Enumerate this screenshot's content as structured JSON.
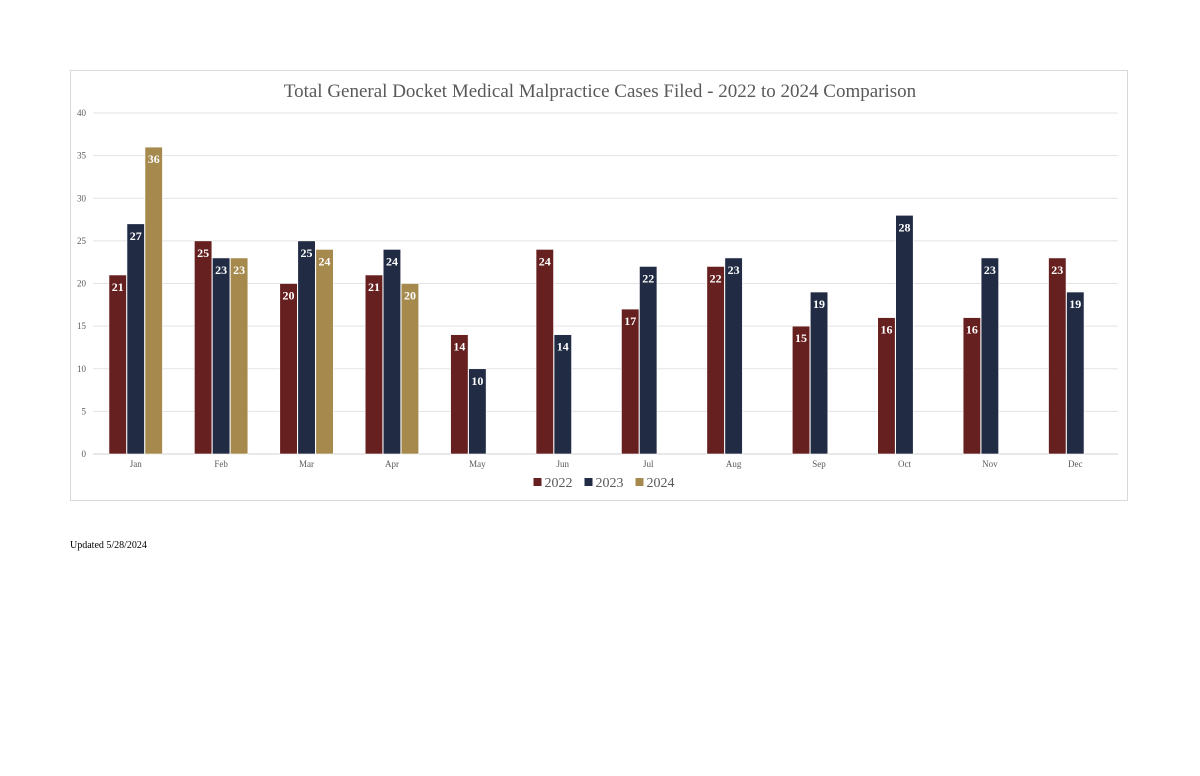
{
  "footnote": "Updated 5/28/2024",
  "colors": {
    "2022": "#66201f",
    "2023": "#212b44",
    "2024": "#a5894d"
  },
  "chart_data": {
    "type": "bar",
    "title": "Total General Docket Medical Malpractice Cases Filed - 2022 to 2024 Comparison",
    "xlabel": "",
    "ylabel": "",
    "ylim": [
      0,
      40
    ],
    "yticks": [
      0,
      5,
      10,
      15,
      20,
      25,
      30,
      35,
      40
    ],
    "grid": true,
    "legend_position": "bottom",
    "categories": [
      "Jan",
      "Feb",
      "Mar",
      "Apr",
      "May",
      "Jun",
      "Jul",
      "Aug",
      "Sep",
      "Oct",
      "Nov",
      "Dec"
    ],
    "series": [
      {
        "name": "2022",
        "color": "#66201f",
        "values": [
          21,
          25,
          20,
          21,
          14,
          24,
          17,
          22,
          15,
          16,
          16,
          23
        ]
      },
      {
        "name": "2023",
        "color": "#212b44",
        "values": [
          27,
          23,
          25,
          24,
          10,
          14,
          22,
          23,
          19,
          28,
          23,
          19
        ]
      },
      {
        "name": "2024",
        "color": "#a5894d",
        "values": [
          36,
          23,
          24,
          20,
          null,
          null,
          null,
          null,
          null,
          null,
          null,
          null
        ]
      }
    ]
  }
}
